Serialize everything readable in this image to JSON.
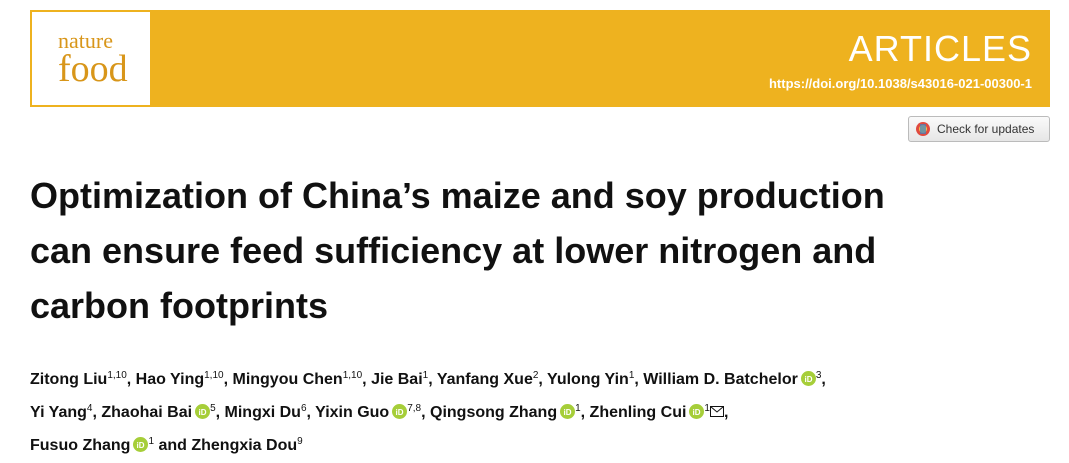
{
  "header": {
    "logo": [
      "nature",
      "food"
    ],
    "section": "ARTICLES",
    "doi": "https://doi.org/10.1038/s43016-021-00300-1",
    "button": "Check for updates"
  },
  "title": [
    "Optimization of China’s maize and soy production",
    "can ensure feed sufficiency at lower nitrogen and",
    "carbon footprints"
  ],
  "authors": [
    [
      {
        "name": "Zitong Liu",
        "sup": "1,10",
        "sep": ", "
      },
      {
        "name": "Hao Ying",
        "sup": "1,10",
        "sep": ", "
      },
      {
        "name": "Mingyou Chen",
        "sup": "1,10",
        "sep": ", "
      },
      {
        "name": "Jie Bai",
        "sup": "1",
        "sep": ", "
      },
      {
        "name": "Yanfang Xue",
        "sup": "2",
        "sep": ", "
      },
      {
        "name": "Yulong Yin",
        "sup": "1",
        "sep": ", "
      },
      {
        "name": "William D. Batchelor",
        "orcid": true,
        "sup": "3",
        "sep": ","
      }
    ],
    [
      {
        "name": "Yi Yang",
        "sup": "4",
        "sep": ", "
      },
      {
        "name": "Zhaohai Bai",
        "orcid": true,
        "sup": "5",
        "sep": ", "
      },
      {
        "name": "Mingxi Du",
        "sup": "6",
        "sep": ", "
      },
      {
        "name": "Yixin Guo",
        "orcid": true,
        "sup": "7,8",
        "sep": ", "
      },
      {
        "name": "Qingsong Zhang",
        "orcid": true,
        "sup": "1",
        "sep": ", "
      },
      {
        "name": "Zhenling Cui",
        "orcid": true,
        "sup": "1",
        "corresponding": true,
        "sep": ","
      }
    ],
    [
      {
        "name": "Fusuo Zhang",
        "orcid": true,
        "sup": "1",
        "sep": " and "
      },
      {
        "name": "Zhengxia Dou",
        "sup": "9"
      }
    ]
  ]
}
